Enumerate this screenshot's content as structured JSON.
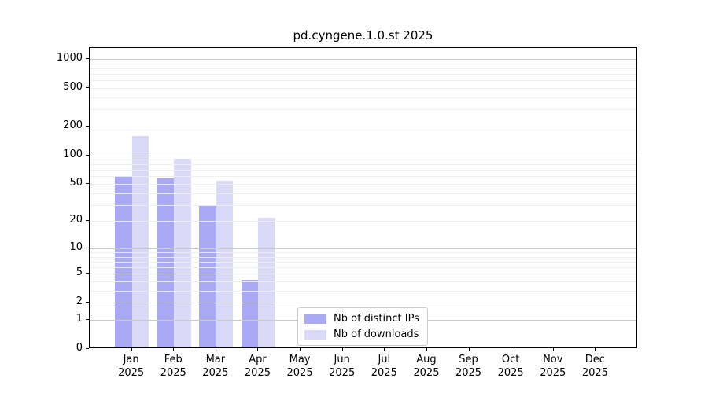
{
  "title": "pd.cyngene.1.0.st 2025",
  "colors": {
    "distinct_ips": "#a9a9f5",
    "downloads": "#dadaf8",
    "axis": "#000000",
    "grid_major": "#c9c9c9",
    "grid_minor": "#ededed",
    "text": "#000000",
    "legend_border": "#cccccc",
    "background": "#ffffff"
  },
  "legend": {
    "items": [
      {
        "label": "Nb of distinct IPs",
        "color_key": "distinct_ips"
      },
      {
        "label": "Nb of downloads",
        "color_key": "downloads"
      }
    ]
  },
  "chart_data": {
    "type": "bar",
    "title": "pd.cyngene.1.0.st 2025",
    "scale": "log1p",
    "categories": [
      "Jan",
      "Feb",
      "Mar",
      "Apr",
      "May",
      "Jun",
      "Jul",
      "Aug",
      "Sep",
      "Oct",
      "Nov",
      "Dec"
    ],
    "category_year": "2025",
    "series": [
      {
        "name": "Nb of distinct IPs",
        "color_key": "distinct_ips",
        "values": [
          58,
          55,
          28,
          4,
          0,
          0,
          0,
          0,
          0,
          0,
          0,
          0
        ]
      },
      {
        "name": "Nb of downloads",
        "color_key": "downloads",
        "values": [
          152,
          89,
          52,
          21,
          0,
          0,
          0,
          0,
          0,
          0,
          0,
          0
        ]
      }
    ],
    "y_tick_labels": [
      0,
      1,
      2,
      5,
      10,
      20,
      50,
      100,
      200,
      500,
      1000
    ],
    "y_major_gridlines": [
      1,
      10,
      100,
      1000
    ],
    "y_minor_gridlines": [
      2,
      3,
      4,
      5,
      6,
      7,
      8,
      9,
      20,
      30,
      40,
      50,
      60,
      70,
      80,
      90,
      200,
      300,
      400,
      500,
      600,
      700,
      800,
      900
    ],
    "ylim": [
      0,
      1300
    ],
    "xlabel": "",
    "ylabel": "",
    "grid": true,
    "legend_position": "inside-bottom-center"
  }
}
